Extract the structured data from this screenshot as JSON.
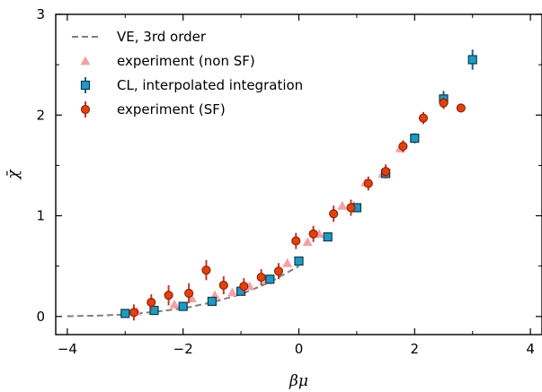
{
  "chart_data": {
    "type": "scatter",
    "xlabel": "βμ",
    "ylabel": "χ̄",
    "xlim": [
      -4.2,
      4.2
    ],
    "ylim": [
      -0.18,
      3.0
    ],
    "x_ticks": [
      -4,
      -2,
      0,
      2,
      4
    ],
    "y_ticks": [
      0,
      1,
      2,
      3
    ],
    "x_tick_labels": [
      "−4",
      "−2",
      "0",
      "2",
      "4"
    ],
    "y_tick_labels": [
      "0",
      "1",
      "2",
      "3"
    ],
    "grid": false,
    "legend_position": "top-left",
    "series": [
      {
        "name": "VE, 3rd order",
        "kind": "line",
        "style": "dashed",
        "color": "#7f7f7f",
        "x": [
          -4.0,
          -3.5,
          -3.0,
          -2.5,
          -2.0,
          -1.5,
          -1.0,
          -0.5,
          0.0
        ],
        "y": [
          0.003,
          0.008,
          0.02,
          0.045,
          0.08,
          0.14,
          0.22,
          0.34,
          0.5
        ]
      },
      {
        "name": "experiment (non SF)",
        "kind": "marker",
        "marker": "triangle",
        "color": "#f4a0a8",
        "x": [
          -2.8,
          -2.15,
          -1.85,
          -1.45,
          -1.15,
          -0.85,
          -0.55,
          -0.2,
          0.15,
          0.35,
          0.75,
          0.95,
          1.15,
          1.45,
          1.75
        ],
        "y": [
          0.05,
          0.12,
          0.18,
          0.21,
          0.24,
          0.3,
          0.36,
          0.53,
          0.74,
          0.82,
          1.1,
          1.1,
          1.33,
          1.42,
          1.67
        ]
      },
      {
        "name": "CL, interpolated integration",
        "kind": "marker",
        "marker": "square",
        "color": "#1f9bbf",
        "x": [
          -3.0,
          -2.5,
          -2.0,
          -1.5,
          -1.0,
          -0.5,
          0.0,
          0.5,
          1.0,
          1.5,
          2.0,
          2.5,
          3.0
        ],
        "y": [
          0.03,
          0.06,
          0.1,
          0.15,
          0.25,
          0.37,
          0.55,
          0.79,
          1.08,
          1.42,
          1.77,
          2.16,
          2.55
        ],
        "err": [
          0.02,
          0.02,
          0.02,
          0.02,
          0.03,
          0.03,
          0.03,
          0.03,
          0.04,
          0.05,
          0.05,
          0.08,
          0.1
        ]
      },
      {
        "name": "experiment (SF)",
        "kind": "marker",
        "marker": "circle",
        "color": "#e2400f",
        "x": [
          -2.85,
          -2.55,
          -2.25,
          -1.9,
          -1.6,
          -1.3,
          -0.95,
          -0.65,
          -0.35,
          -0.05,
          0.25,
          0.6,
          0.9,
          1.2,
          1.5,
          1.8,
          2.15,
          2.5,
          2.8
        ],
        "y": [
          0.04,
          0.14,
          0.21,
          0.23,
          0.46,
          0.31,
          0.3,
          0.39,
          0.45,
          0.75,
          0.82,
          1.02,
          1.08,
          1.32,
          1.44,
          1.69,
          1.97,
          2.12,
          2.07
        ],
        "err": [
          0.08,
          0.08,
          0.1,
          0.1,
          0.1,
          0.09,
          0.08,
          0.08,
          0.08,
          0.08,
          0.08,
          0.08,
          0.08,
          0.07,
          0.07,
          0.06,
          0.06,
          0.06,
          0.03
        ]
      }
    ]
  }
}
